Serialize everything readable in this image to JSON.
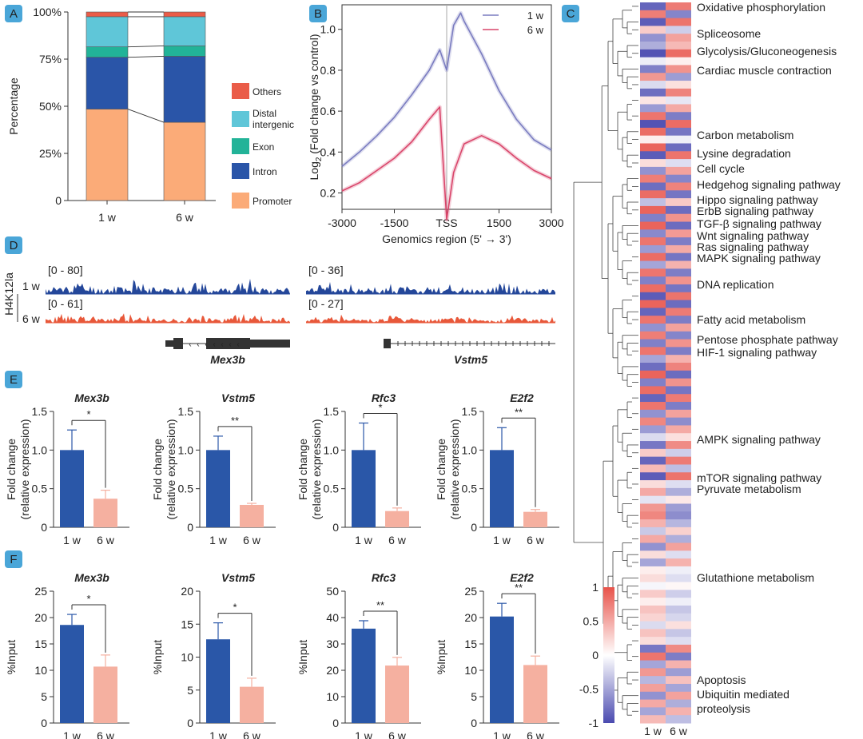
{
  "panel_letters": {
    "A": "A",
    "B": "B",
    "C": "C",
    "D": "D",
    "E": "E",
    "F": "F"
  },
  "colors": {
    "dark_blue": "#2a57a8",
    "salmon": "#f5b0a0",
    "track_blue": "#24479a",
    "track_red": "#e8583a",
    "badge": "#4aa6d8",
    "line_1w": "#7a7cc0",
    "line_6w": "#d9456a",
    "heat_high": "#e8534a",
    "heat_mid": "#ffffff",
    "heat_low": "#4a4ab0",
    "promoter": "#fbab78",
    "intron": "#2a55a8",
    "exon": "#22b398",
    "distal": "#5fc6d8",
    "others": "#ea5c48"
  },
  "chart_data": [
    {
      "id": "A",
      "type": "bar",
      "subtype": "stacked-100",
      "categories": [
        "1 w",
        "6 w"
      ],
      "series": [
        {
          "name": "Promoter",
          "values": [
            48.5,
            41.5
          ]
        },
        {
          "name": "Intron",
          "values": [
            27.5,
            35
          ]
        },
        {
          "name": "Exon",
          "values": [
            5.5,
            5.5
          ]
        },
        {
          "name": "Distal intergenic",
          "values": [
            16,
            15.5
          ]
        },
        {
          "name": "Others",
          "values": [
            2.5,
            2.5
          ]
        }
      ],
      "legend": [
        "Others",
        "Distal intergenic",
        "Exon",
        "Intron",
        "Promoter"
      ],
      "legend_display": [
        "Others",
        "Distal|intergenic",
        "Exon",
        "Intron",
        "Promoter"
      ],
      "ylabel": "Percentage",
      "ytick_labels": [
        "0",
        "25%",
        "50%",
        "75%",
        "100%"
      ],
      "yticks": [
        0,
        25,
        50,
        75,
        100
      ],
      "ylim": [
        0,
        100
      ]
    },
    {
      "id": "B",
      "type": "line",
      "title": "",
      "xlabel": "Genomics region (5' → 3')",
      "ylabel": "Log2 (Fold change vs control)",
      "ylabel_main": "Log",
      "ylabel_sub": "2",
      "ylabel_rest": " (Fold change vs control)",
      "xlim": [
        -3000,
        3000
      ],
      "ylim": [
        0.12,
        1.12
      ],
      "xtick_labels": [
        "-3000",
        "-1500",
        "TSS",
        "1500",
        "3000"
      ],
      "xticks": [
        -3000,
        -1500,
        0,
        1500,
        3000
      ],
      "ytick_labels": [
        "0.2",
        "0.4",
        "0.6",
        "0.8",
        "1.0"
      ],
      "yticks": [
        0.2,
        0.4,
        0.6,
        0.8,
        1.0
      ],
      "series": [
        {
          "name": "1 w",
          "x": [
            -3000,
            -2500,
            -2000,
            -1500,
            -1000,
            -500,
            -200,
            0,
            200,
            400,
            500,
            1000,
            1500,
            2000,
            2500,
            3000
          ],
          "y": [
            0.33,
            0.4,
            0.48,
            0.57,
            0.68,
            0.8,
            0.9,
            0.8,
            1.02,
            1.08,
            1.04,
            0.88,
            0.7,
            0.56,
            0.46,
            0.41
          ]
        },
        {
          "name": "6 w",
          "x": [
            -3000,
            -2500,
            -2000,
            -1500,
            -1000,
            -500,
            -200,
            0,
            200,
            500,
            1000,
            1500,
            2000,
            2500,
            3000
          ],
          "y": [
            0.21,
            0.25,
            0.31,
            0.37,
            0.45,
            0.56,
            0.62,
            0.07,
            0.3,
            0.44,
            0.48,
            0.44,
            0.37,
            0.31,
            0.27
          ]
        }
      ],
      "legend": [
        "1 w",
        "6 w"
      ]
    },
    {
      "id": "C",
      "type": "heatmap",
      "columns": [
        "1 w",
        "6 w"
      ],
      "colorbar_ticks": [
        "1",
        "0.5",
        "0",
        "-0.5",
        "-1"
      ],
      "colorbar_values": [
        1,
        0.5,
        0,
        -0.5,
        -1
      ],
      "rows": [
        -0.85,
        0.75,
        -0.9,
        0.3,
        -0.6,
        -0.45,
        -0.95,
        -0.1,
        -0.7,
        0.6,
        -0.2,
        -0.8,
        0.15,
        -0.55,
        0.8,
        -0.95,
        0.85,
        0.1,
        0.9,
        -0.9,
        0.2,
        -0.6,
        0.75,
        -0.8,
        0.85,
        -0.35,
        0.9,
        -0.7,
        0.9,
        -0.65,
        0.8,
        -0.55,
        0.85,
        -0.5,
        0.8,
        -0.7,
        0.85,
        -0.9,
        0.9,
        -0.85,
        0.8,
        -0.6,
        0.75,
        -0.7,
        0.8,
        -0.5,
        -0.8,
        0.9,
        -0.7,
        0.85,
        -0.85,
        0.8,
        -0.6,
        0.7,
        -0.55,
        -0.2,
        -0.75,
        0.3,
        -0.85,
        0.4,
        -0.9,
        0.2,
        0.5,
        -0.15,
        0.6,
        0.7,
        0.45,
        -0.3,
        0.5,
        -0.6,
        0.2,
        -0.5,
        0.1,
        0.2,
        -0.05,
        0.3,
        0.1,
        0.35,
        0.25,
        -0.2,
        0.35,
        0.2,
        -0.75,
        0.8,
        -0.5,
        0.6,
        -0.4,
        0.55,
        -0.6,
        0.5,
        -0.5,
        0.4
      ],
      "labels": [
        "Oxidative phosphorylation",
        "Spliceosome",
        "Glycolysis/Gluconeogenesis",
        "Cardiac muscle contraction",
        "Carbon metabolism",
        "Lysine degradation",
        "Cell cycle",
        "Hedgehog signaling pathway",
        "Hippo signaling pathway",
        "ErbB signaling pathway",
        "TGF-β signaling pathway",
        "Wnt signaling pathway",
        "Ras signaling pathway",
        "MAPK signaling pathway",
        "DNA replication",
        "Fatty acid metabolism",
        "Pentose phosphate pathway",
        "HIF-1 signaling pathway",
        "AMPK signaling pathway",
        "mTOR signaling pathway",
        "Pyruvate metabolism",
        "Glutathione metabolism",
        "Apoptosis",
        "Ubiquitin mediated",
        "proteolysis"
      ]
    },
    {
      "id": "D",
      "type": "other",
      "subtype": "genome-tracks",
      "track_label": "H4K12la",
      "row_labels": [
        "1 w",
        "6 w"
      ],
      "genes": [
        "Mex3b",
        "Vstm5"
      ],
      "ranges": {
        "mex3b_1w": "[0 - 80]",
        "mex3b_6w": "[0 - 61]",
        "vstm5_1w": "[0 - 36]",
        "vstm5_6w": "[0 - 27]"
      }
    },
    {
      "id": "E",
      "type": "bar",
      "ylabel": "Fold change (relative expression)",
      "ylabel_line1": "Fold change",
      "ylabel_line2": "(relative expression)",
      "categories": [
        "1 w",
        "6 w"
      ],
      "ylim": [
        0,
        1.5
      ],
      "ytick_labels": [
        "0",
        "0.5",
        "1.0",
        "1.5"
      ],
      "yticks": [
        0,
        0.5,
        1.0,
        1.5
      ],
      "panels": [
        {
          "gene": "Mex3b",
          "values": [
            1.0,
            0.37
          ],
          "errors": [
            0.26,
            0.11
          ],
          "sig": "*"
        },
        {
          "gene": "Vstm5",
          "values": [
            1.0,
            0.29
          ],
          "errors": [
            0.18,
            0.02
          ],
          "sig": "**"
        },
        {
          "gene": "Rfc3",
          "values": [
            1.0,
            0.21
          ],
          "errors": [
            0.35,
            0.04
          ],
          "sig": "*"
        },
        {
          "gene": "E2f2",
          "values": [
            1.0,
            0.2
          ],
          "errors": [
            0.29,
            0.03
          ],
          "sig": "**"
        }
      ]
    },
    {
      "id": "F",
      "type": "bar",
      "ylabel": "%Input",
      "categories": [
        "1 w",
        "6 w"
      ],
      "panels": [
        {
          "gene": "Mex3b",
          "values": [
            18.6,
            10.7
          ],
          "errors": [
            2.0,
            2.2
          ],
          "sig": "*",
          "ylim": [
            0,
            25
          ],
          "ytick_labels": [
            "0",
            "5",
            "10",
            "15",
            "20",
            "25"
          ],
          "yticks": [
            0,
            5,
            10,
            15,
            20,
            25
          ]
        },
        {
          "gene": "Vstm5",
          "values": [
            12.7,
            5.5
          ],
          "errors": [
            2.5,
            1.3
          ],
          "sig": "*",
          "ylim": [
            0,
            20
          ],
          "ytick_labels": [
            "0",
            "5",
            "10",
            "15",
            "20"
          ],
          "yticks": [
            0,
            5,
            10,
            15,
            20
          ]
        },
        {
          "gene": "Rfc3",
          "values": [
            35.8,
            21.8
          ],
          "errors": [
            3.0,
            3.1
          ],
          "sig": "**",
          "ylim": [
            0,
            50
          ],
          "ytick_labels": [
            "0",
            "10",
            "20",
            "30",
            "40",
            "50"
          ],
          "yticks": [
            0,
            10,
            20,
            30,
            40,
            50
          ]
        },
        {
          "gene": "E2f2",
          "values": [
            20.2,
            11.0
          ],
          "errors": [
            2.5,
            1.7
          ],
          "sig": "**",
          "ylim": [
            0,
            25
          ],
          "ytick_labels": [
            "0",
            "5",
            "10",
            "15",
            "20",
            "25"
          ],
          "yticks": [
            0,
            5,
            10,
            15,
            20,
            25
          ]
        }
      ]
    }
  ]
}
